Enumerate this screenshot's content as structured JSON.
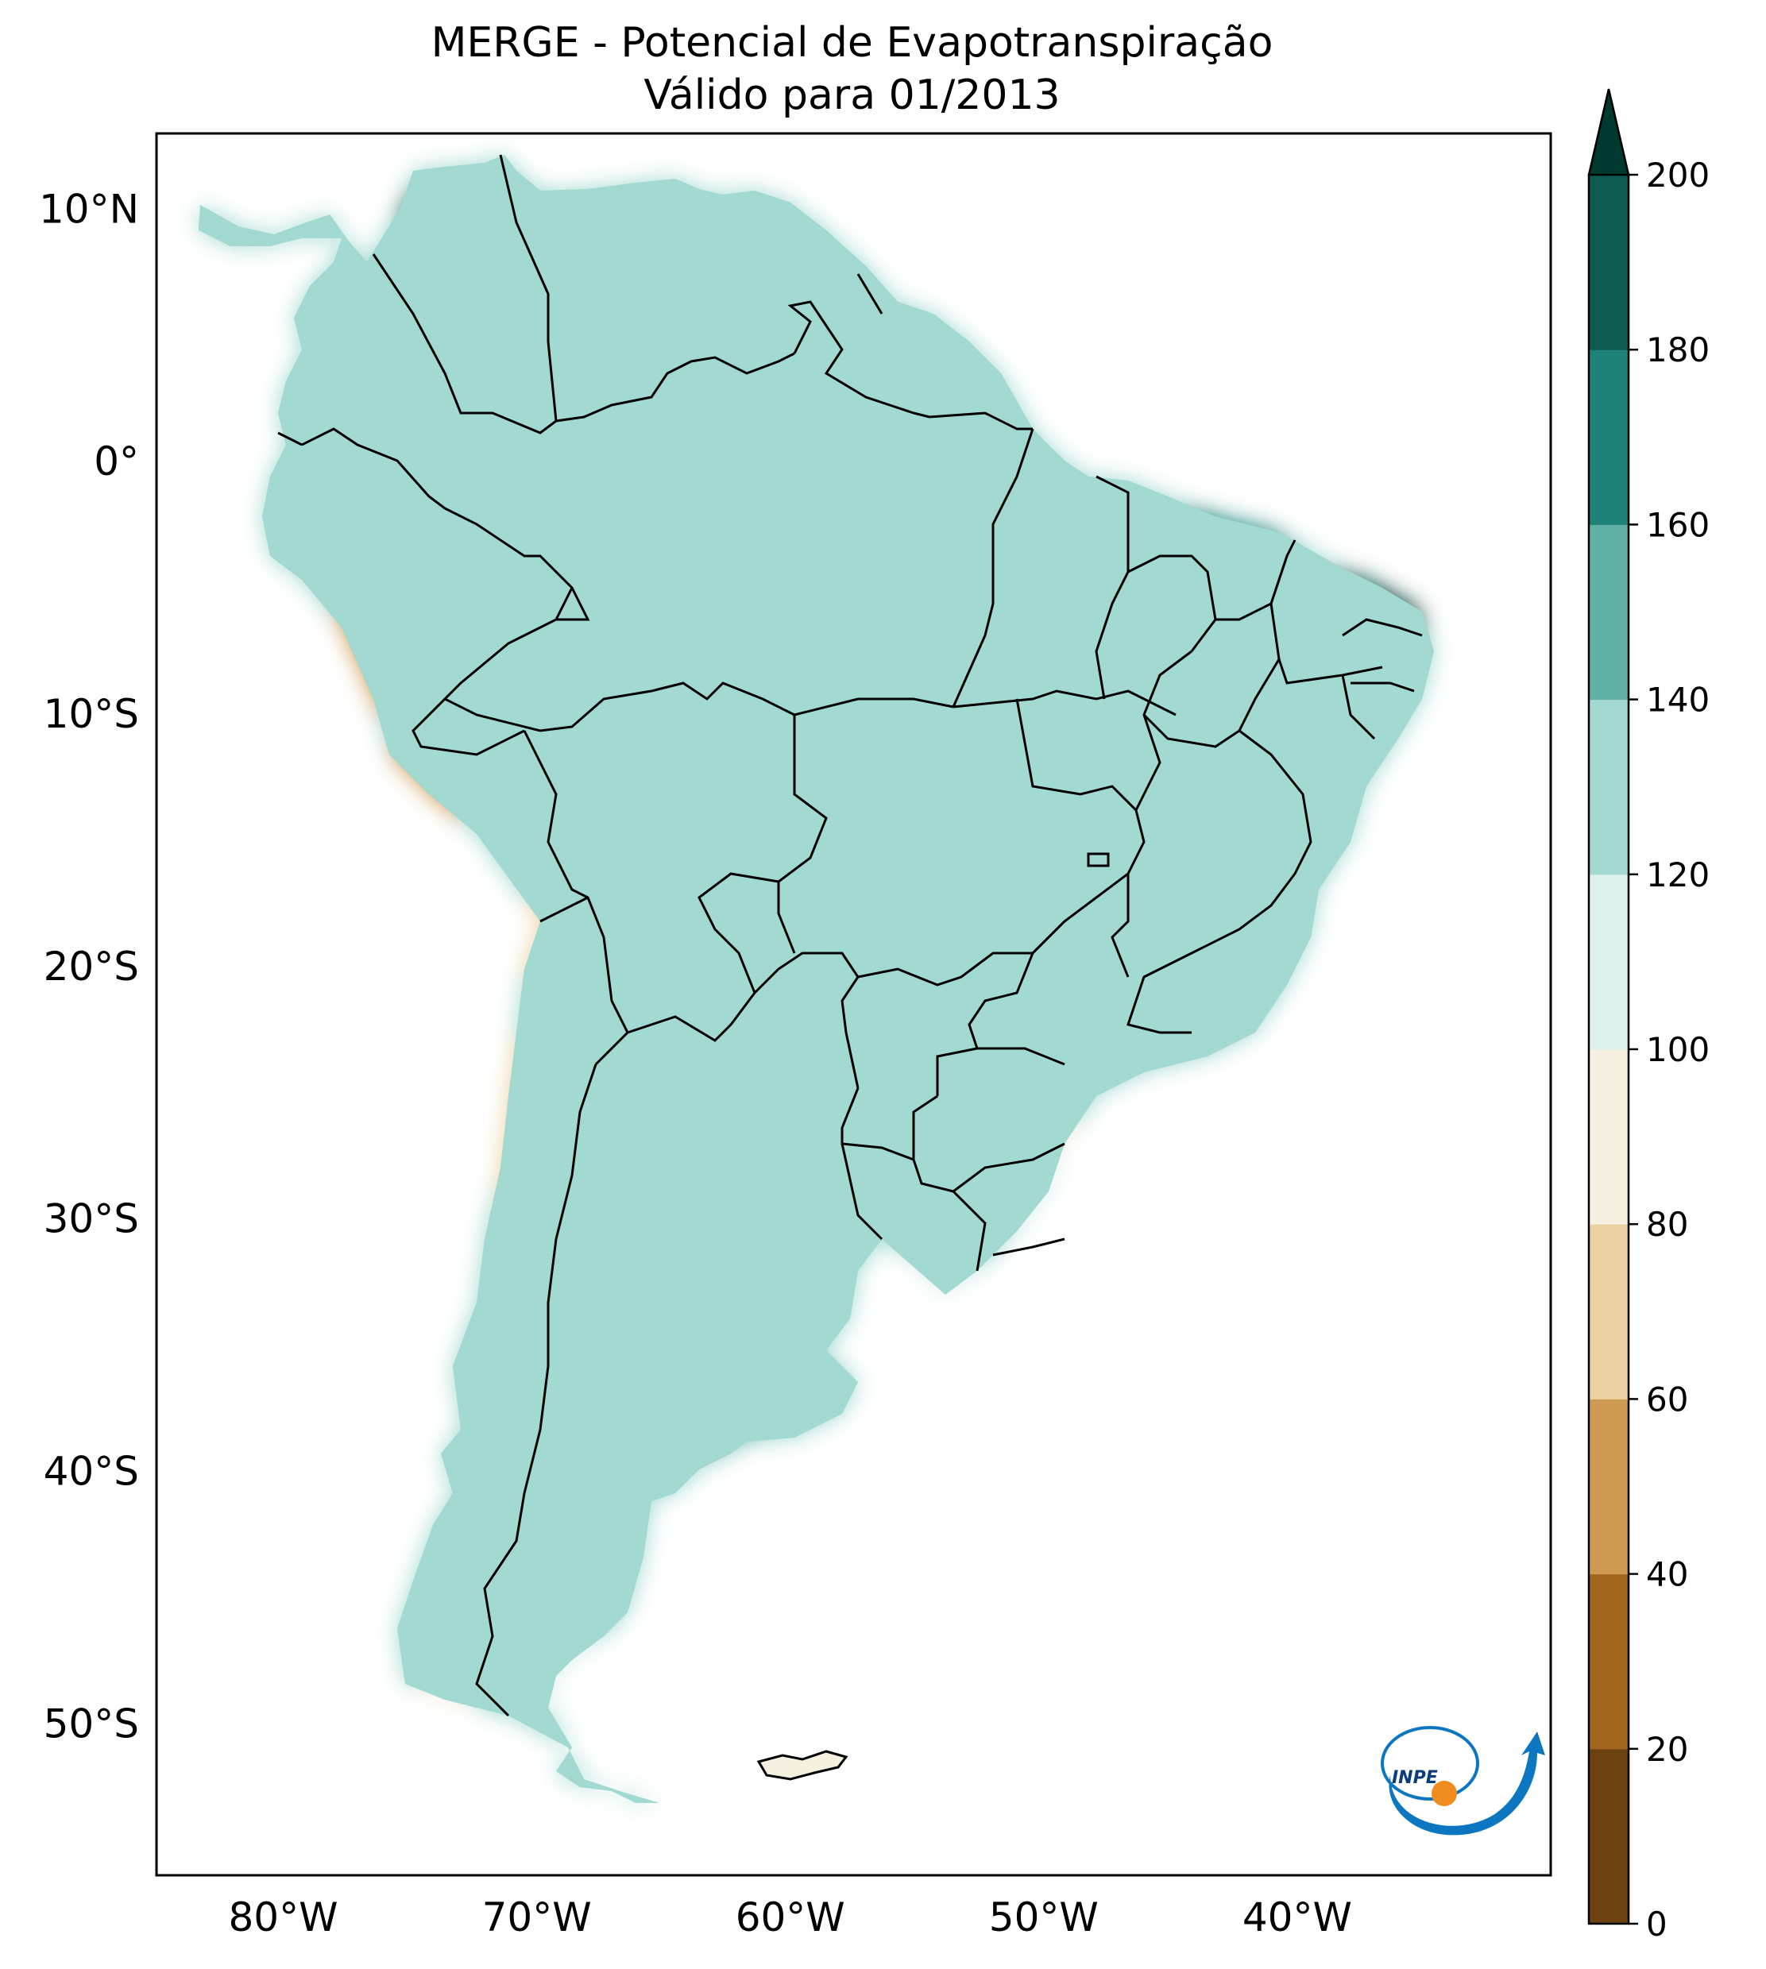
{
  "title": {
    "line1": "MERGE - Potencial de Evapotranspiração",
    "line2": "Válido para 01/2013"
  },
  "map": {
    "region": "South America",
    "lon_range": [
      -85,
      -30
    ],
    "lat_range": [
      -56,
      13
    ],
    "lon_ticks": [
      {
        "value": -80,
        "label": "80°W"
      },
      {
        "value": -70,
        "label": "70°W"
      },
      {
        "value": -60,
        "label": "60°W"
      },
      {
        "value": -50,
        "label": "50°W"
      },
      {
        "value": -40,
        "label": "40°W"
      }
    ],
    "lat_ticks": [
      {
        "value": 10,
        "label": "10°N"
      },
      {
        "value": 0,
        "label": "0°"
      },
      {
        "value": -10,
        "label": "10°S"
      },
      {
        "value": -20,
        "label": "20°S"
      },
      {
        "value": -30,
        "label": "30°S"
      },
      {
        "value": -40,
        "label": "40°S"
      },
      {
        "value": -50,
        "label": "50°S"
      }
    ],
    "ocean_color": "#ffffff",
    "border_color": "#000000"
  },
  "colorbar": {
    "ticks": [
      "0",
      "20",
      "40",
      "60",
      "80",
      "100",
      "120",
      "140",
      "160",
      "180",
      "200"
    ],
    "levels": [
      0,
      20,
      40,
      60,
      80,
      100,
      120,
      140,
      160,
      180,
      200
    ],
    "colors": [
      "#6e4110",
      "#a3661e",
      "#cf9b52",
      "#ead3a0",
      "#f6f0e0",
      "#dcf0ed",
      "#a2d9d0",
      "#5fb0a5",
      "#1f827a",
      "#0b5b50"
    ],
    "extend_color": "#00392f",
    "extend": "max"
  },
  "logo": {
    "text": "INPE"
  }
}
